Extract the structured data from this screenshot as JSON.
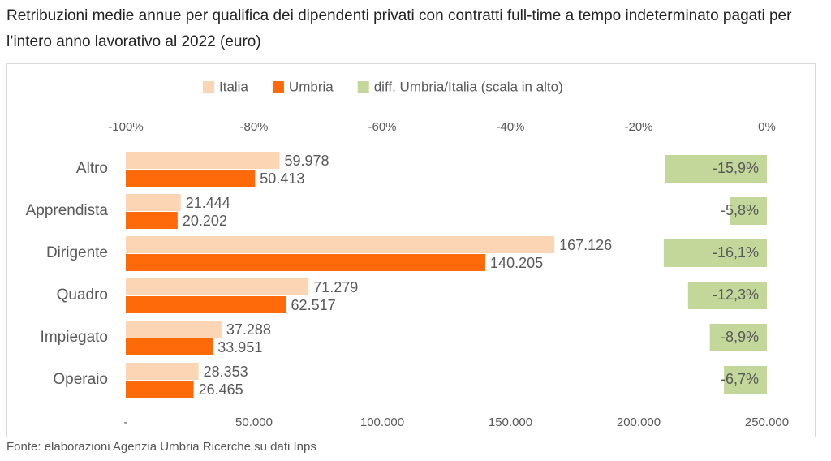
{
  "chart_data": {
    "type": "bar",
    "orientation": "horizontal",
    "title": "Retribuzioni medie annue per qualifica dei dipendenti privati con contratti full-time a tempo indeterminato pagati per l’intero anno lavorativo al 2022 (euro)",
    "source": "Fonte: elaborazioni Agenzia Umbria Ricerche su dati Inps",
    "categories": [
      "Altro",
      "Apprendista",
      "Dirigente",
      "Quadro",
      "Impiegato",
      "Operaio"
    ],
    "series": [
      {
        "name": "Italia",
        "color": "#fcd5b4",
        "values": [
          59978,
          21444,
          167126,
          71279,
          37288,
          28353
        ],
        "value_labels": [
          "59.978",
          "21.444",
          "167.126",
          "71.279",
          "37.288",
          "28.353"
        ]
      },
      {
        "name": "Umbria",
        "color": "#fe6a0a",
        "values": [
          50413,
          20202,
          140205,
          62517,
          33951,
          26465
        ],
        "value_labels": [
          "50.413",
          "20.202",
          "140.205",
          "62.517",
          "33.951",
          "26.465"
        ]
      },
      {
        "name": "diff. Umbria/Italia (scala in alto)",
        "color": "#c4d79b",
        "axis": "x2",
        "values": [
          -15.9,
          -5.8,
          -16.1,
          -12.3,
          -8.9,
          -6.7
        ],
        "value_labels": [
          "-15,9%",
          "-5,8%",
          "-16,1%",
          "-12,3%",
          "-8,9%",
          "-6,7%"
        ]
      }
    ],
    "xlim": [
      0,
      250000
    ],
    "xticks": [
      {
        "value": 0,
        "label": "-"
      },
      {
        "value": 50000,
        "label": "50.000"
      },
      {
        "value": 100000,
        "label": "100.000"
      },
      {
        "value": 150000,
        "label": "150.000"
      },
      {
        "value": 200000,
        "label": "200.000"
      },
      {
        "value": 250000,
        "label": "250.000"
      }
    ],
    "x2lim": [
      -100,
      0
    ],
    "x2ticks": [
      {
        "value": -100,
        "label": "-100%"
      },
      {
        "value": -80,
        "label": "-80%"
      },
      {
        "value": -60,
        "label": "-60%"
      },
      {
        "value": -40,
        "label": "-40%"
      },
      {
        "value": -20,
        "label": "-20%"
      },
      {
        "value": 0,
        "label": "0%"
      }
    ],
    "legend": "top"
  }
}
